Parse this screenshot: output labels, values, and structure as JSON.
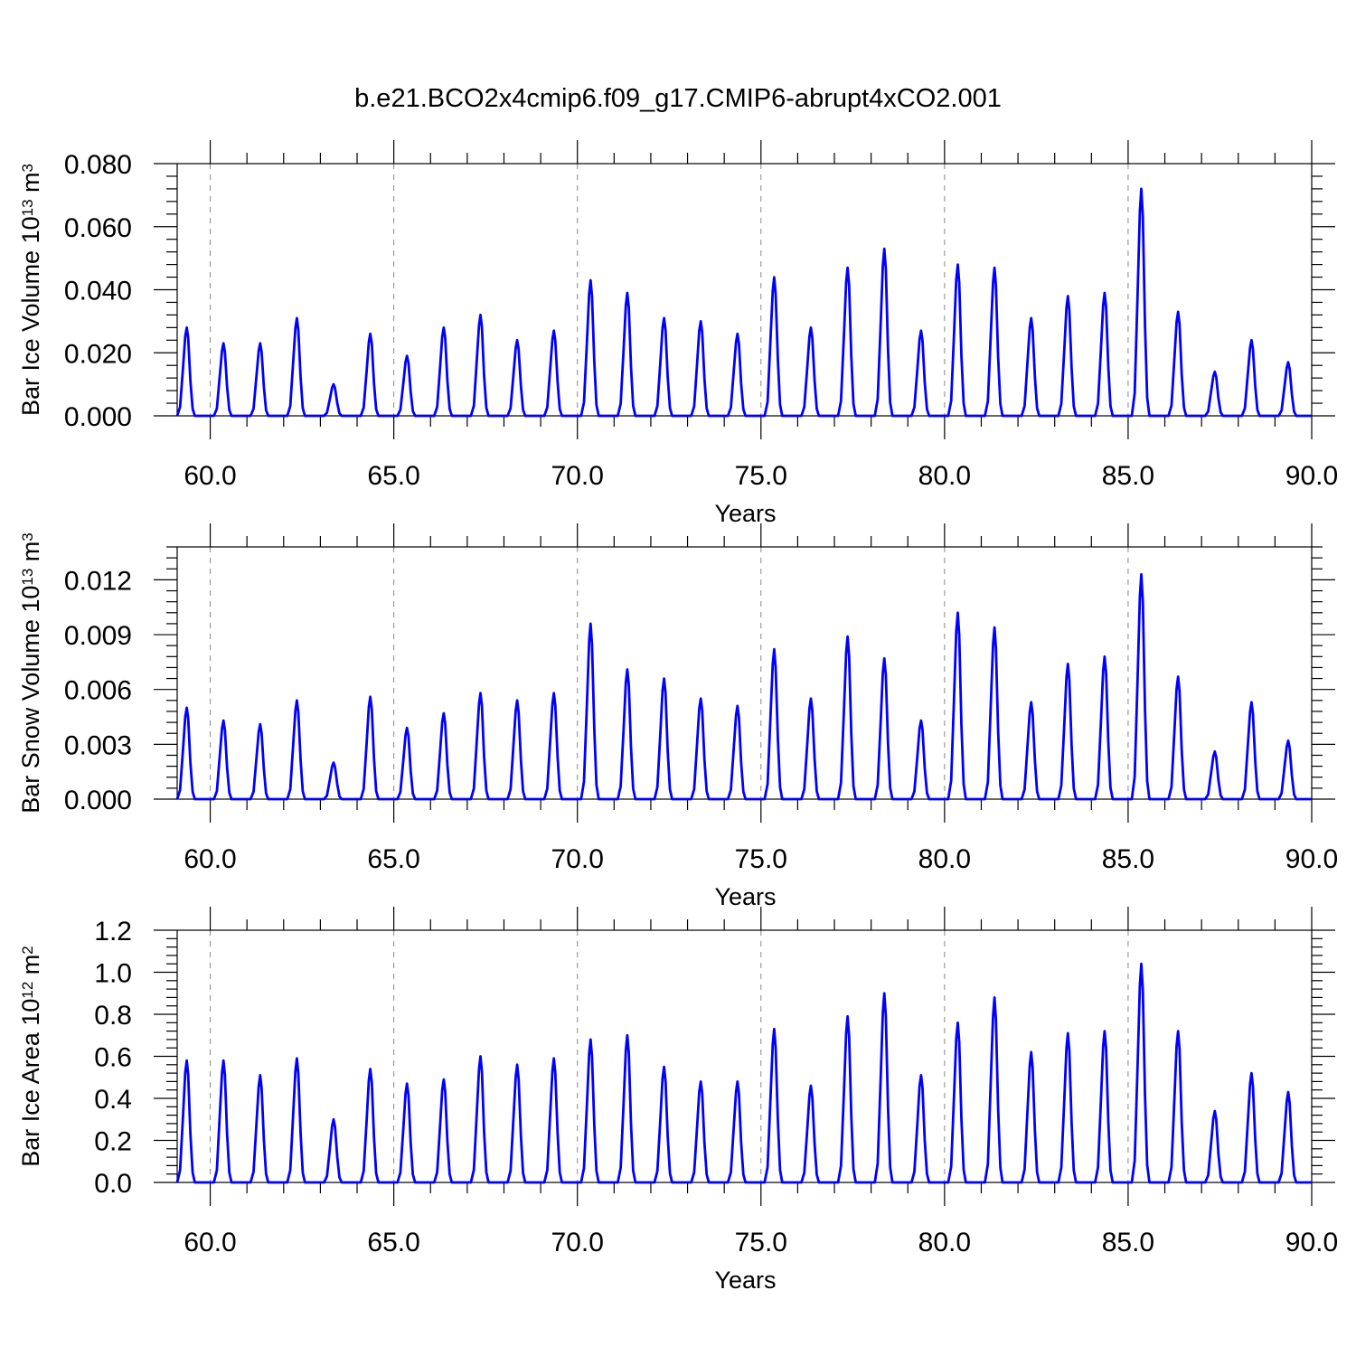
{
  "figure": {
    "title": "b.e21.BCO2x4cmip6.f09_g17.CMIP6-abrupt4xCO2.001"
  },
  "colors": {
    "line": "#0000ff",
    "axis": "#000000",
    "grid": "#888888"
  },
  "chart_data": [
    {
      "type": "line",
      "ylabel": {
        "main": "Bar Ice Volume 10",
        "sup": "13",
        "unit": " m",
        "unit_sup": "3"
      },
      "xlabel": "Years",
      "xlim": [
        59.1,
        90.0
      ],
      "ylim": [
        0.0,
        0.08
      ],
      "grid": "dashed vertical at 5-year intervals",
      "x_ticks": [
        "60.0",
        "65.0",
        "70.0",
        "75.0",
        "80.0",
        "85.0",
        "90.0"
      ],
      "y_ticks": [
        "0.000",
        "0.020",
        "0.040",
        "0.060",
        "0.080"
      ],
      "series": [
        {
          "annual_peaks": [
            {
              "year": 59,
              "peak": 0.028
            },
            {
              "year": 60,
              "peak": 0.023
            },
            {
              "year": 61,
              "peak": 0.023
            },
            {
              "year": 62,
              "peak": 0.031
            },
            {
              "year": 63,
              "peak": 0.01
            },
            {
              "year": 64,
              "peak": 0.026
            },
            {
              "year": 65,
              "peak": 0.019
            },
            {
              "year": 66,
              "peak": 0.028
            },
            {
              "year": 67,
              "peak": 0.032
            },
            {
              "year": 68,
              "peak": 0.024
            },
            {
              "year": 69,
              "peak": 0.027
            },
            {
              "year": 70,
              "peak": 0.043
            },
            {
              "year": 71,
              "peak": 0.039
            },
            {
              "year": 72,
              "peak": 0.031
            },
            {
              "year": 73,
              "peak": 0.03
            },
            {
              "year": 74,
              "peak": 0.026
            },
            {
              "year": 75,
              "peak": 0.044
            },
            {
              "year": 76,
              "peak": 0.028
            },
            {
              "year": 77,
              "peak": 0.047
            },
            {
              "year": 78,
              "peak": 0.053
            },
            {
              "year": 79,
              "peak": 0.027
            },
            {
              "year": 80,
              "peak": 0.048
            },
            {
              "year": 81,
              "peak": 0.047
            },
            {
              "year": 82,
              "peak": 0.031
            },
            {
              "year": 83,
              "peak": 0.038
            },
            {
              "year": 84,
              "peak": 0.039
            },
            {
              "year": 85,
              "peak": 0.072
            },
            {
              "year": 86,
              "peak": 0.033
            },
            {
              "year": 87,
              "peak": 0.014
            },
            {
              "year": 88,
              "peak": 0.024
            },
            {
              "year": 89,
              "peak": 0.017
            }
          ]
        }
      ]
    },
    {
      "type": "line",
      "ylabel": {
        "main": "Bar Snow Volume 10",
        "sup": "13",
        "unit": " m",
        "unit_sup": "3"
      },
      "xlabel": "Years",
      "xlim": [
        59.1,
        90.0
      ],
      "ylim": [
        0.0,
        0.0138
      ],
      "grid": "dashed vertical at 5-year intervals",
      "x_ticks": [
        "60.0",
        "65.0",
        "70.0",
        "75.0",
        "80.0",
        "85.0",
        "90.0"
      ],
      "y_ticks": [
        "0.000",
        "0.003",
        "0.006",
        "0.009",
        "0.012"
      ],
      "series": [
        {
          "annual_peaks": [
            {
              "year": 59,
              "peak": 0.005
            },
            {
              "year": 60,
              "peak": 0.0043
            },
            {
              "year": 61,
              "peak": 0.0041
            },
            {
              "year": 62,
              "peak": 0.0054
            },
            {
              "year": 63,
              "peak": 0.002
            },
            {
              "year": 64,
              "peak": 0.0056
            },
            {
              "year": 65,
              "peak": 0.0039
            },
            {
              "year": 66,
              "peak": 0.0047
            },
            {
              "year": 67,
              "peak": 0.0058
            },
            {
              "year": 68,
              "peak": 0.0054
            },
            {
              "year": 69,
              "peak": 0.0058
            },
            {
              "year": 70,
              "peak": 0.0096
            },
            {
              "year": 71,
              "peak": 0.0071
            },
            {
              "year": 72,
              "peak": 0.0066
            },
            {
              "year": 73,
              "peak": 0.0055
            },
            {
              "year": 74,
              "peak": 0.0051
            },
            {
              "year": 75,
              "peak": 0.0082
            },
            {
              "year": 76,
              "peak": 0.0055
            },
            {
              "year": 77,
              "peak": 0.0089
            },
            {
              "year": 78,
              "peak": 0.0077
            },
            {
              "year": 79,
              "peak": 0.0043
            },
            {
              "year": 80,
              "peak": 0.0102
            },
            {
              "year": 81,
              "peak": 0.0094
            },
            {
              "year": 82,
              "peak": 0.0053
            },
            {
              "year": 83,
              "peak": 0.0074
            },
            {
              "year": 84,
              "peak": 0.0078
            },
            {
              "year": 85,
              "peak": 0.0123
            },
            {
              "year": 86,
              "peak": 0.0067
            },
            {
              "year": 87,
              "peak": 0.0026
            },
            {
              "year": 88,
              "peak": 0.0053
            },
            {
              "year": 89,
              "peak": 0.0032
            }
          ]
        }
      ]
    },
    {
      "type": "line",
      "ylabel": {
        "main": "Bar Ice Area 10",
        "sup": "12",
        "unit": " m",
        "unit_sup": "2"
      },
      "xlabel": "Years",
      "xlim": [
        59.1,
        90.0
      ],
      "ylim": [
        0.0,
        1.2
      ],
      "grid": "dashed vertical at 5-year intervals",
      "x_ticks": [
        "60.0",
        "65.0",
        "70.0",
        "75.0",
        "80.0",
        "85.0",
        "90.0"
      ],
      "y_ticks": [
        "0.0",
        "0.2",
        "0.4",
        "0.6",
        "0.8",
        "1.0",
        "1.2"
      ],
      "series": [
        {
          "annual_peaks": [
            {
              "year": 59,
              "peak": 0.58
            },
            {
              "year": 60,
              "peak": 0.58
            },
            {
              "year": 61,
              "peak": 0.51
            },
            {
              "year": 62,
              "peak": 0.59
            },
            {
              "year": 63,
              "peak": 0.3
            },
            {
              "year": 64,
              "peak": 0.54
            },
            {
              "year": 65,
              "peak": 0.47
            },
            {
              "year": 66,
              "peak": 0.49
            },
            {
              "year": 67,
              "peak": 0.6
            },
            {
              "year": 68,
              "peak": 0.56
            },
            {
              "year": 69,
              "peak": 0.59
            },
            {
              "year": 70,
              "peak": 0.68
            },
            {
              "year": 71,
              "peak": 0.7
            },
            {
              "year": 72,
              "peak": 0.55
            },
            {
              "year": 73,
              "peak": 0.48
            },
            {
              "year": 74,
              "peak": 0.48
            },
            {
              "year": 75,
              "peak": 0.73
            },
            {
              "year": 76,
              "peak": 0.46
            },
            {
              "year": 77,
              "peak": 0.79
            },
            {
              "year": 78,
              "peak": 0.9
            },
            {
              "year": 79,
              "peak": 0.51
            },
            {
              "year": 80,
              "peak": 0.76
            },
            {
              "year": 81,
              "peak": 0.88
            },
            {
              "year": 82,
              "peak": 0.62
            },
            {
              "year": 83,
              "peak": 0.71
            },
            {
              "year": 84,
              "peak": 0.72
            },
            {
              "year": 85,
              "peak": 1.04
            },
            {
              "year": 86,
              "peak": 0.72
            },
            {
              "year": 87,
              "peak": 0.34
            },
            {
              "year": 88,
              "peak": 0.52
            },
            {
              "year": 89,
              "peak": 0.43
            }
          ]
        }
      ]
    }
  ]
}
